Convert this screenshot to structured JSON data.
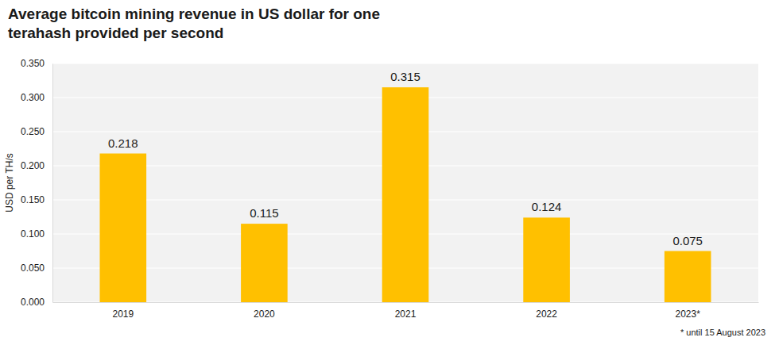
{
  "chart_data": {
    "type": "bar",
    "title": "Average bitcoin mining revenue in US dollar for one terahash provided per second",
    "ylabel": "USD per TH/s",
    "annotation": "* until 15 August 2023",
    "categories": [
      "2019",
      "2020",
      "2021",
      "2022",
      "2023*"
    ],
    "values": [
      0.218,
      0.115,
      0.315,
      0.124,
      0.075
    ],
    "color": "#FFC000",
    "ylim": [
      0,
      0.35
    ],
    "yticks": [
      {
        "value": 0,
        "label": "0.000"
      },
      {
        "value": 0.05,
        "label": "0.050"
      },
      {
        "value": 0.1,
        "label": "0.100"
      },
      {
        "value": 0.15,
        "label": "0.150"
      },
      {
        "value": 0.2,
        "label": "0.200"
      },
      {
        "value": 0.25,
        "label": "0.250"
      },
      {
        "value": 0.3,
        "label": "0.300"
      },
      {
        "value": 0.35,
        "label": "0.350"
      }
    ],
    "grid": true,
    "data_labels": true
  }
}
